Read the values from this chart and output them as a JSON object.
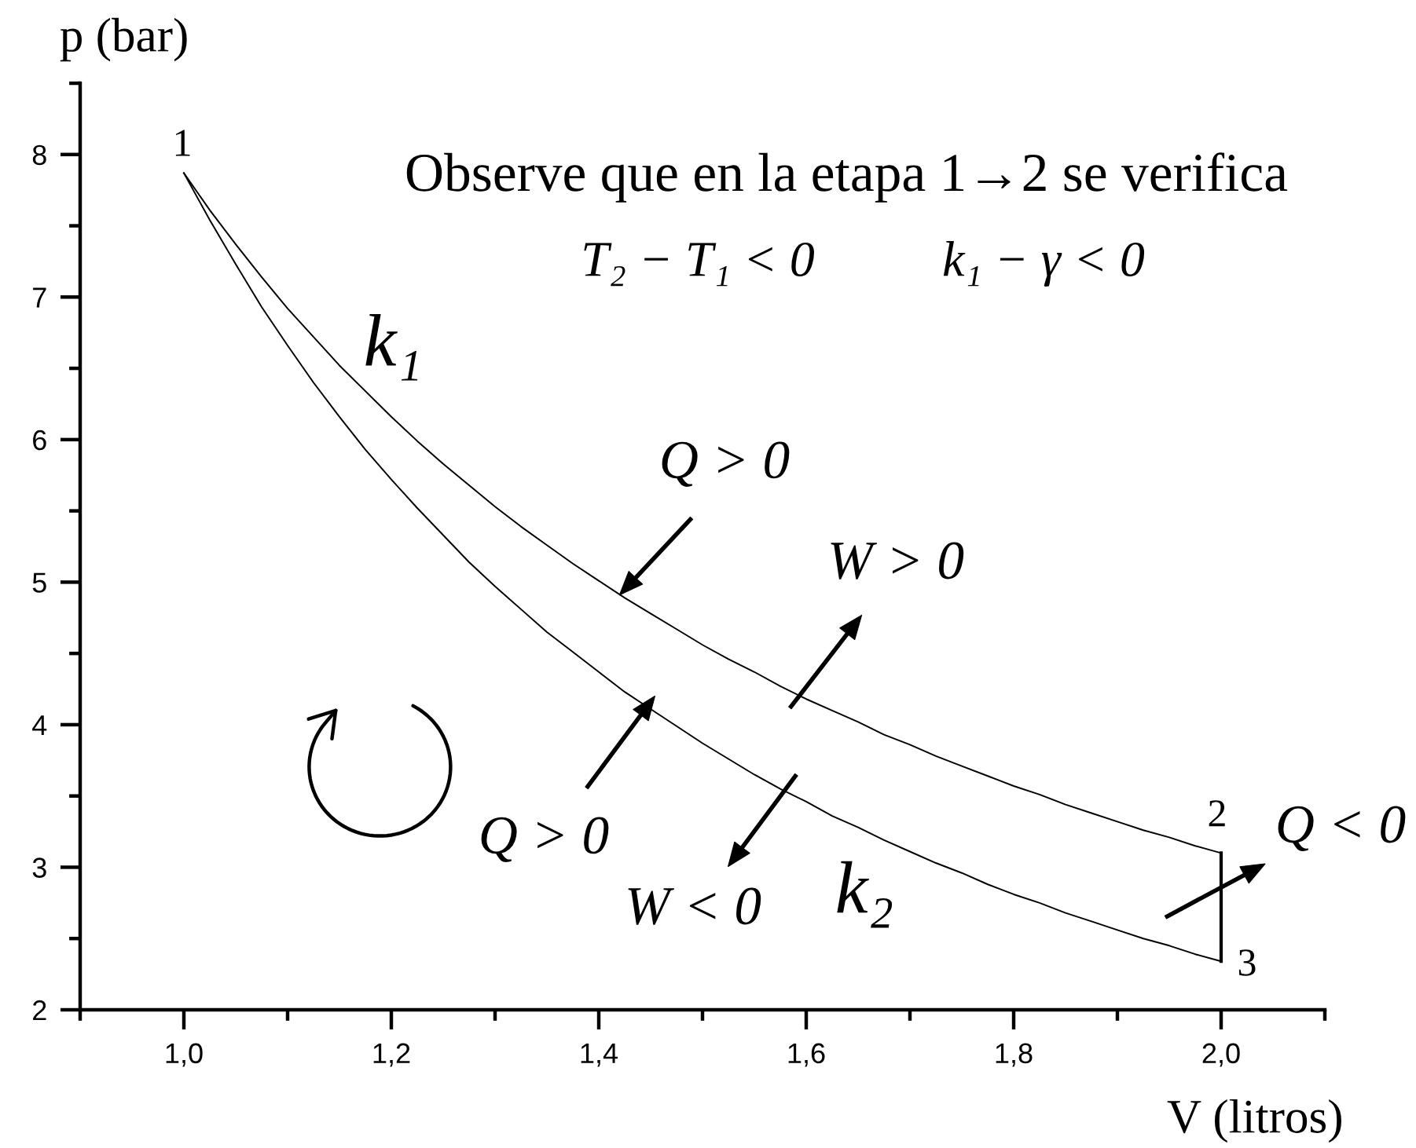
{
  "chart_data": {
    "type": "line",
    "xlabel": "V (litros)",
    "ylabel": "p (bar)",
    "xlim": [
      0.9,
      2.1
    ],
    "ylim": [
      2,
      8.5
    ],
    "xticks": [
      {
        "value": 0.9,
        "label": null
      },
      {
        "value": 1.0,
        "label": "1,0"
      },
      {
        "value": 1.1,
        "label": null
      },
      {
        "value": 1.2,
        "label": "1,2"
      },
      {
        "value": 1.3,
        "label": null
      },
      {
        "value": 1.4,
        "label": "1,4"
      },
      {
        "value": 1.5,
        "label": null
      },
      {
        "value": 1.6,
        "label": "1,6"
      },
      {
        "value": 1.7,
        "label": null
      },
      {
        "value": 1.8,
        "label": "1,8"
      },
      {
        "value": 1.9,
        "label": null
      },
      {
        "value": 2.0,
        "label": "2,0"
      },
      {
        "value": 2.1,
        "label": null
      }
    ],
    "yticks": [
      2,
      {
        "value": 2.5,
        "label": null
      },
      3,
      {
        "value": 3.5,
        "label": null
      },
      4,
      {
        "value": 4.5,
        "label": null
      },
      5,
      {
        "value": 5.5,
        "label": null
      },
      6,
      {
        "value": 6.5,
        "label": null
      },
      7,
      {
        "value": 7.5,
        "label": null
      },
      8,
      {
        "value": 8.5,
        "label": null
      }
    ],
    "series": [
      {
        "name": "k₁",
        "color": "#000000",
        "x": [
          1.0,
          1.025,
          1.05,
          1.075,
          1.1,
          1.125,
          1.15,
          1.175,
          1.2,
          1.225,
          1.25,
          1.275,
          1.3,
          1.325,
          1.35,
          1.375,
          1.4,
          1.425,
          1.45,
          1.475,
          1.5,
          1.525,
          1.55,
          1.575,
          1.6,
          1.625,
          1.65,
          1.675,
          1.7,
          1.725,
          1.75,
          1.775,
          1.8,
          1.825,
          1.85,
          1.875,
          1.9,
          1.925,
          1.95,
          1.975,
          2.0
        ],
        "values": [
          7.87,
          7.61,
          7.37,
          7.14,
          6.92,
          6.72,
          6.52,
          6.34,
          6.16,
          5.99,
          5.83,
          5.68,
          5.53,
          5.39,
          5.26,
          5.13,
          5.01,
          4.89,
          4.78,
          4.67,
          4.56,
          4.46,
          4.37,
          4.27,
          4.18,
          4.1,
          4.02,
          3.93,
          3.86,
          3.78,
          3.71,
          3.64,
          3.57,
          3.51,
          3.44,
          3.38,
          3.32,
          3.26,
          3.21,
          3.15,
          3.1
        ]
      },
      {
        "name": "k₂",
        "color": "#000000",
        "x": [
          1.0,
          1.025,
          1.05,
          1.075,
          1.1,
          1.125,
          1.15,
          1.175,
          1.2,
          1.225,
          1.25,
          1.275,
          1.3,
          1.325,
          1.35,
          1.375,
          1.4,
          1.425,
          1.45,
          1.475,
          1.5,
          1.525,
          1.55,
          1.575,
          1.6,
          1.625,
          1.65,
          1.675,
          1.7,
          1.725,
          1.75,
          1.775,
          1.8,
          1.825,
          1.85,
          1.875,
          1.9,
          1.925,
          1.95,
          1.975,
          2.0
        ],
        "values": [
          7.87,
          7.54,
          7.23,
          6.93,
          6.66,
          6.4,
          6.16,
          5.93,
          5.72,
          5.52,
          5.33,
          5.14,
          4.97,
          4.81,
          4.65,
          4.51,
          4.37,
          4.23,
          4.11,
          3.99,
          3.87,
          3.76,
          3.65,
          3.55,
          3.46,
          3.36,
          3.28,
          3.19,
          3.11,
          3.03,
          2.96,
          2.88,
          2.81,
          2.75,
          2.68,
          2.62,
          2.56,
          2.5,
          2.45,
          2.39,
          2.34
        ]
      },
      {
        "color": "#000000",
        "x": [
          2.0,
          2.0
        ],
        "values": [
          3.1,
          2.34
        ]
      }
    ],
    "annotations": [
      {
        "text": "1",
        "x": 1.0,
        "y": 7.87
      },
      {
        "text": "2",
        "x": 2.0,
        "y": 3.1
      },
      {
        "text": "3",
        "x": 2.0,
        "y": 2.34
      },
      {
        "text": "Q > 0",
        "x": 1.42,
        "y": 4.91
      },
      {
        "text": "W > 0",
        "x": 1.6,
        "y": 4.18
      },
      {
        "text": "Q > 0",
        "x": 1.45,
        "y": 4.11
      },
      {
        "text": "W < 0",
        "x": 1.58,
        "y": 3.53
      },
      {
        "text": "Q < 0",
        "x": 2.0,
        "y": 2.86
      },
      "Observe que en la etapa 1→2 se verifica",
      "T₂ − T₁ < 0",
      "k₁ − γ < 0"
    ]
  }
}
